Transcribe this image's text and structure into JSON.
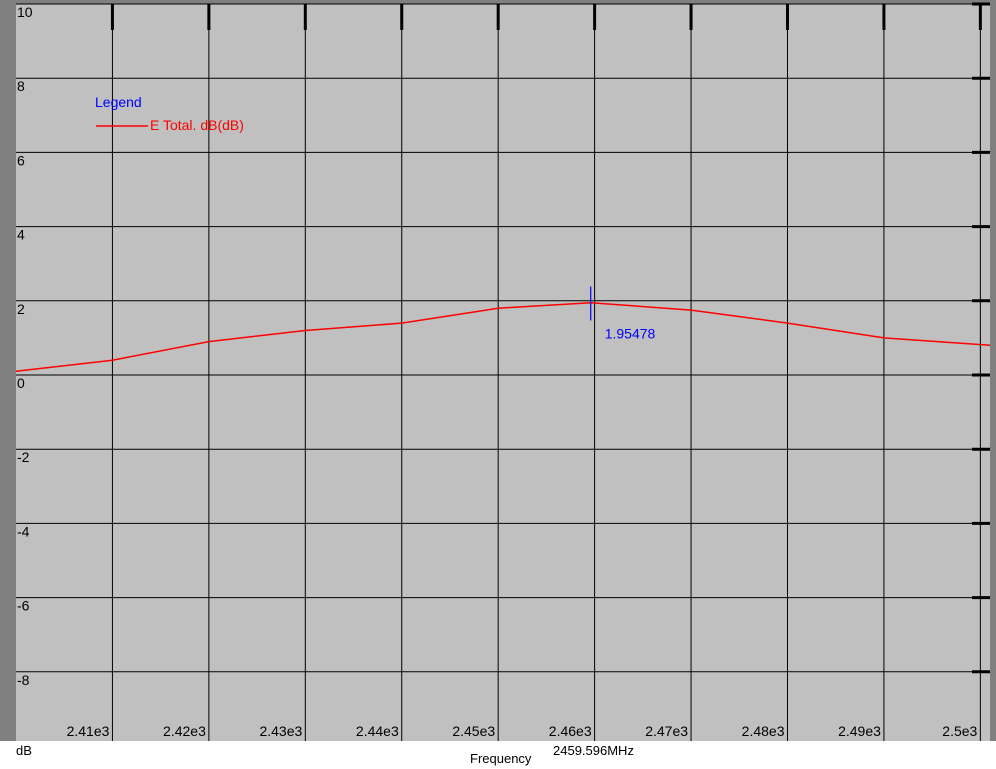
{
  "chart_data": {
    "type": "line",
    "x_axis_name": "Frequency",
    "y_unit": "dB",
    "xlim": [
      2400,
      2501
    ],
    "ylim": [
      -10,
      10
    ],
    "grid": true,
    "legend_position": "top-left",
    "background_color": "#c0c0c0",
    "line_color": "#ff0000",
    "marker_color": "#0000ff",
    "legend": {
      "title": "Legend",
      "entries": [
        "E Total. dB(dB)"
      ]
    },
    "x_ticks": [
      {
        "value": 2410,
        "label": "2.41e3"
      },
      {
        "value": 2420,
        "label": "2.42e3"
      },
      {
        "value": 2430,
        "label": "2.43e3"
      },
      {
        "value": 2440,
        "label": "2.44e3"
      },
      {
        "value": 2450,
        "label": "2.45e3"
      },
      {
        "value": 2460,
        "label": "2.46e3"
      },
      {
        "value": 2470,
        "label": "2.47e3"
      },
      {
        "value": 2480,
        "label": "2.48e3"
      },
      {
        "value": 2490,
        "label": "2.49e3"
      },
      {
        "value": 2500,
        "label": "2.5e3"
      }
    ],
    "y_ticks": [
      {
        "value": 10,
        "label": "10"
      },
      {
        "value": 8,
        "label": "8"
      },
      {
        "value": 6,
        "label": "6"
      },
      {
        "value": 4,
        "label": "4"
      },
      {
        "value": 2,
        "label": "2"
      },
      {
        "value": 0,
        "label": "0"
      },
      {
        "value": -2,
        "label": "-2"
      },
      {
        "value": -4,
        "label": "-4"
      },
      {
        "value": -6,
        "label": "-6"
      },
      {
        "value": -8,
        "label": "-8"
      }
    ],
    "series": [
      {
        "name": "E Total. dB(dB)",
        "x": [
          2400,
          2410,
          2420,
          2430,
          2440,
          2450,
          2459.6,
          2470,
          2480,
          2490,
          2501
        ],
        "y": [
          0.1,
          0.4,
          0.9,
          1.2,
          1.4,
          1.8,
          1.95,
          1.75,
          1.4,
          1.0,
          0.8
        ]
      }
    ],
    "marker": {
      "x": 2459.596,
      "y": 1.95478,
      "label": "1.95478"
    }
  },
  "status": {
    "y_unit": "dB",
    "x_name": "Frequency",
    "cursor_readout": "2459.596MHz"
  }
}
